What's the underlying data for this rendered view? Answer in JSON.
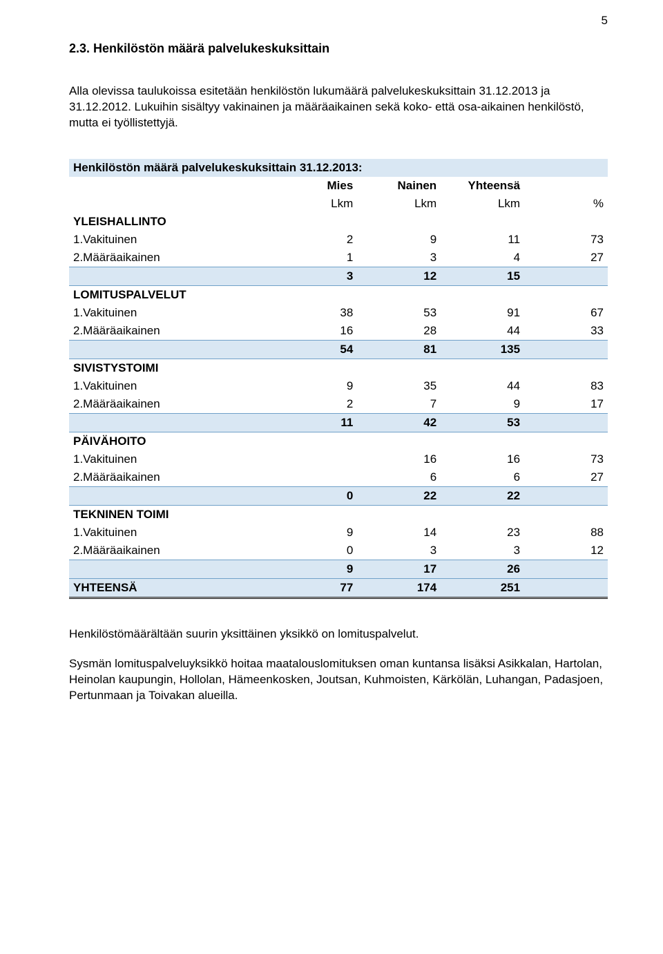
{
  "page_number": "5",
  "heading": "2.3. Henkilöstön määrä palvelukeskuksittain",
  "intro": "Alla olevissa taulukoissa esitetään henkilöstön lukumäärä palvelukeskuksittain 31.12.2013 ja 31.12.2012. Lukuihin sisältyy vakinainen ja määräaikainen sekä koko- että osa-aikainen henkilöstö, mutta ei työllistettyjä.",
  "table": {
    "title": "Henkilöstön määrä palvelukeskuksittain 31.12.2013:",
    "headers1": {
      "c1": "Mies",
      "c2": "Nainen",
      "c3": "Yhteensä"
    },
    "headers2": {
      "c1": "Lkm",
      "c2": "Lkm",
      "c3": "Lkm",
      "c4": "%"
    },
    "colors": {
      "highlight_bg": "#d9e7f3",
      "highlight_border": "#6fa0c8",
      "grand_border_bottom": "#000000"
    },
    "sections": [
      {
        "name": "YLEISHALLINTO",
        "rows": [
          {
            "label": "1.Vakituinen",
            "v": [
              "2",
              "9",
              "11",
              "73"
            ]
          },
          {
            "label": "2.Määräaikainen",
            "v": [
              "1",
              "3",
              "4",
              "27"
            ]
          }
        ],
        "subtotal": [
          "3",
          "12",
          "15",
          ""
        ]
      },
      {
        "name": "LOMITUSPALVELUT",
        "rows": [
          {
            "label": "1.Vakituinen",
            "v": [
              "38",
              "53",
              "91",
              "67"
            ]
          },
          {
            "label": "2.Määräaikainen",
            "v": [
              "16",
              "28",
              "44",
              "33"
            ]
          }
        ],
        "subtotal": [
          "54",
          "81",
          "135",
          ""
        ]
      },
      {
        "name": "SIVISTYSTOIMI",
        "rows": [
          {
            "label": "1.Vakituinen",
            "v": [
              "9",
              "35",
              "44",
              "83"
            ]
          },
          {
            "label": "2.Määräaikainen",
            "v": [
              "2",
              "7",
              "9",
              "17"
            ]
          }
        ],
        "subtotal": [
          "11",
          "42",
          "53",
          ""
        ]
      },
      {
        "name": "PÄIVÄHOITO",
        "rows": [
          {
            "label": "1.Vakituinen",
            "v": [
              "",
              "16",
              "16",
              "73"
            ]
          },
          {
            "label": "2.Määräaikainen",
            "v": [
              "",
              "6",
              "6",
              "27"
            ]
          }
        ],
        "subtotal": [
          "0",
          "22",
          "22",
          ""
        ]
      },
      {
        "name": "TEKNINEN TOIMI",
        "rows": [
          {
            "label": "1.Vakituinen",
            "v": [
              "9",
              "14",
              "23",
              "88"
            ]
          },
          {
            "label": "2.Määräaikainen",
            "v": [
              "0",
              "3",
              "3",
              "12"
            ]
          }
        ],
        "subtotal": [
          "9",
          "17",
          "26",
          ""
        ]
      }
    ],
    "grand": {
      "label": "YHTEENSÄ",
      "v": [
        "77",
        "174",
        "251",
        ""
      ]
    }
  },
  "footer1": "Henkilöstömäärältään suurin yksittäinen yksikkö on lomituspalvelut.",
  "footer2": "Sysmän lomituspalveluyksikkö hoitaa maatalouslomituksen oman kuntansa lisäksi Asikkalan, Hartolan, Heinolan kaupungin, Hollolan, Hämeenkosken, Joutsan, Kuhmoisten, Kärkölän, Luhangan, Padasjoen, Pertunmaan ja Toivakan alueilla."
}
